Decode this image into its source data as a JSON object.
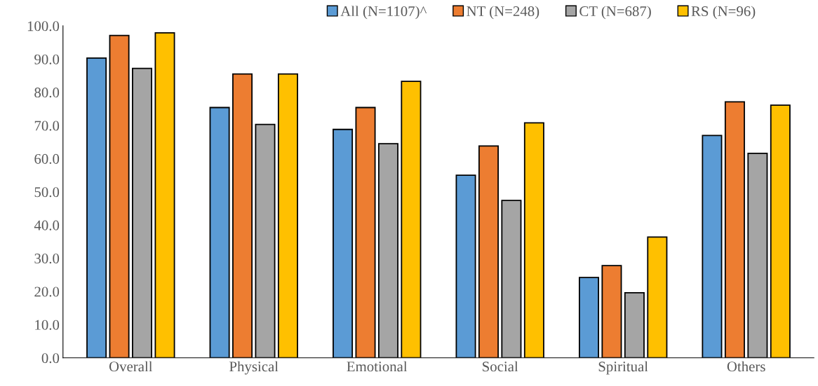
{
  "chart_data": {
    "type": "bar",
    "categories": [
      "Overall",
      "Physical",
      "Emotional",
      "Social",
      "Spiritual",
      "Others"
    ],
    "series": [
      {
        "name": "All (N=1107)^",
        "color": "#5b9bd5",
        "values": [
          90.3,
          75.4,
          68.8,
          55.0,
          24.2,
          67.0
        ]
      },
      {
        "name": "NT (N=248)",
        "color": "#ed7d31",
        "values": [
          97.1,
          85.5,
          75.4,
          63.8,
          27.8,
          77.1
        ]
      },
      {
        "name": "CT (N=687)",
        "color": "#a5a5a5",
        "values": [
          87.2,
          70.3,
          64.5,
          47.4,
          19.6,
          61.6
        ]
      },
      {
        "name": "RS (N=96)",
        "color": "#ffc000",
        "values": [
          97.9,
          85.5,
          83.3,
          70.8,
          36.4,
          76.1
        ]
      }
    ],
    "ylim": [
      0,
      100
    ],
    "yticks": [
      {
        "value": 0,
        "label": "0.0"
      },
      {
        "value": 10,
        "label": "10.0"
      },
      {
        "value": 20,
        "label": "20.0"
      },
      {
        "value": 30,
        "label": "30.0"
      },
      {
        "value": 40,
        "label": "40.0"
      },
      {
        "value": 50,
        "label": "50.0"
      },
      {
        "value": 60,
        "label": "60.0"
      },
      {
        "value": 70,
        "label": "70.0"
      },
      {
        "value": 80,
        "label": "80.0"
      },
      {
        "value": 90,
        "label": "90.0"
      },
      {
        "value": 100,
        "label": "100.0"
      }
    ],
    "grid": false,
    "legend": "top right"
  }
}
